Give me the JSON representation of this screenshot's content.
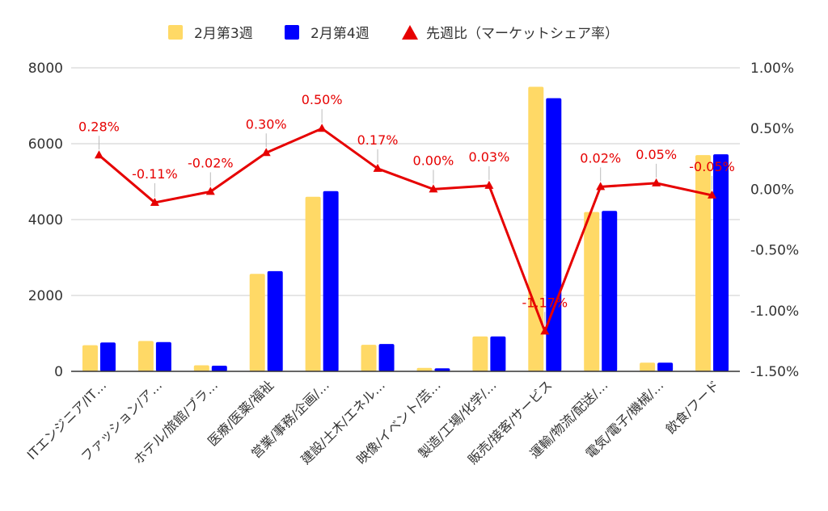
{
  "chart_data": {
    "type": "bar",
    "categories": [
      "ITエンジニア/IT…",
      "ファッション/ア…",
      "ホテル/旅館/ブラ…",
      "医療/医薬/福祉",
      "営業/事務/企画/…",
      "建設/土木/エネル…",
      "映像/イベント/芸…",
      "製造/工場/化学/…",
      "販売/接客/サービス",
      "運輸/物流/配送/…",
      "電気/電子/機械/…",
      "飲食/フード"
    ],
    "series": [
      {
        "name": "2月第3週",
        "kind": "bar",
        "axis": "left",
        "color": "#ffd966",
        "values": [
          690,
          800,
          160,
          2570,
          4600,
          700,
          90,
          920,
          7500,
          4200,
          230,
          5700
        ]
      },
      {
        "name": "2月第4週",
        "kind": "bar",
        "axis": "left",
        "color": "#0000ff",
        "values": [
          760,
          770,
          150,
          2640,
          4750,
          720,
          80,
          920,
          7200,
          4230,
          230,
          5720
        ]
      },
      {
        "name": "先週比（マーケットシェア率）",
        "kind": "line",
        "axis": "right",
        "color": "#e60000",
        "values": [
          0.28,
          -0.11,
          -0.02,
          0.3,
          0.5,
          0.17,
          0.0,
          0.03,
          -1.17,
          0.02,
          0.05,
          -0.05
        ],
        "labels": [
          "0.28%",
          "-0.11%",
          "-0.02%",
          "0.30%",
          "0.50%",
          "0.17%",
          "0.00%",
          "0.03%",
          "-1.17%",
          "0.02%",
          "0.05%",
          "-0.05%"
        ]
      }
    ],
    "y_left": {
      "range": [
        0,
        8000
      ],
      "ticks": [
        "0",
        "2000",
        "4000",
        "6000",
        "8000"
      ],
      "tick_values": [
        0,
        2000,
        4000,
        6000,
        8000
      ]
    },
    "y_right": {
      "range": [
        -1.5,
        1.0
      ],
      "ticks": [
        "-1.50%",
        "-1.00%",
        "-0.50%",
        "0.00%",
        "0.50%",
        "1.00%"
      ],
      "tick_values": [
        -1.5,
        -1.0,
        -0.5,
        0.0,
        0.5,
        1.0
      ]
    },
    "grid": true,
    "legend_position": "top-center"
  }
}
